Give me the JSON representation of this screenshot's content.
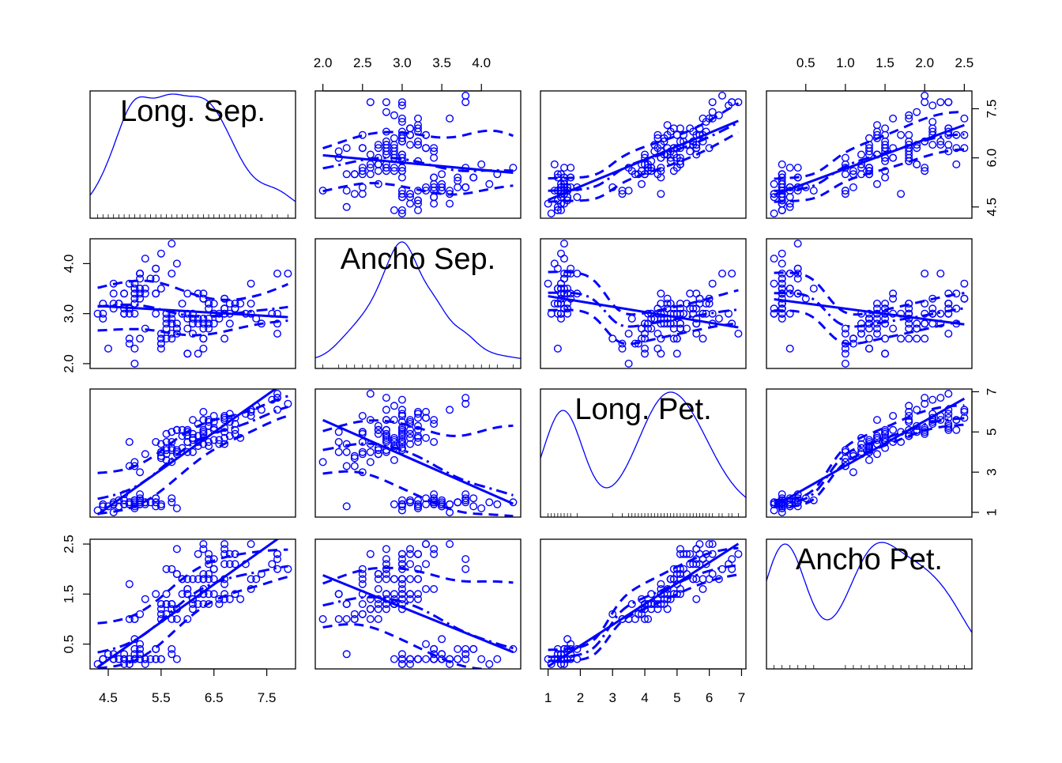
{
  "chart_data": {
    "type": "scatter",
    "subtype": "scatterplot-matrix",
    "variables": [
      "Long. Sep.",
      "Ancho Sep.",
      "Long. Pet.",
      "Ancho Pet."
    ],
    "ranges": {
      "Long. Sep.": [
        4.3,
        7.9
      ],
      "Ancho Sep.": [
        2.0,
        4.4
      ],
      "Long. Pet.": [
        1.0,
        6.9
      ],
      "Ancho Pet.": [
        0.1,
        2.5
      ]
    },
    "ticks": {
      "Long. Sep.": [
        "4.5",
        "5.5",
        "6.5",
        "7.5"
      ],
      "Ancho Sep.": [
        "2.0",
        "2.5",
        "3.0",
        "3.5",
        "4.0"
      ],
      "Long. Pet.": [
        "1",
        "2",
        "3",
        "4",
        "5",
        "6",
        "7"
      ],
      "Ancho Pet.": [
        "0.5",
        "1.0",
        "1.5",
        "2.0",
        "2.5"
      ]
    },
    "right_ticks": {
      "Long. Sep.": [
        "4.5",
        "6.0",
        "7.5"
      ],
      "Long. Pet.": [
        "1",
        "3",
        "5",
        "7"
      ]
    },
    "left_ticks": {
      "Ancho Sep.": [
        "2.0",
        "3.0",
        "4.0"
      ],
      "Ancho Pet.": [
        "0.5",
        "1.5",
        "2.5"
      ]
    },
    "points": {
      "Long. Sep.": [
        5.1,
        4.9,
        4.7,
        4.6,
        5.0,
        5.4,
        4.6,
        5.0,
        4.4,
        4.9,
        5.4,
        4.8,
        4.8,
        4.3,
        5.8,
        5.7,
        5.4,
        5.1,
        5.7,
        5.1,
        5.4,
        5.1,
        4.6,
        5.1,
        4.8,
        5.0,
        5.0,
        5.2,
        5.2,
        4.7,
        4.8,
        5.4,
        5.2,
        5.5,
        4.9,
        5.0,
        5.5,
        4.9,
        4.4,
        5.1,
        5.0,
        4.5,
        4.4,
        5.0,
        5.1,
        4.8,
        5.1,
        4.6,
        5.3,
        5.0,
        7.0,
        6.4,
        6.9,
        5.5,
        6.5,
        5.7,
        6.3,
        4.9,
        6.6,
        5.2,
        5.0,
        5.9,
        6.0,
        6.1,
        5.6,
        6.7,
        5.6,
        5.8,
        6.2,
        5.6,
        5.9,
        6.1,
        6.3,
        6.1,
        6.4,
        6.6,
        6.8,
        6.7,
        6.0,
        5.7,
        5.5,
        5.5,
        5.8,
        6.0,
        5.4,
        6.0,
        6.7,
        6.3,
        5.6,
        5.5,
        5.5,
        6.1,
        5.8,
        5.0,
        5.6,
        5.7,
        5.7,
        6.2,
        5.1,
        5.7,
        6.3,
        5.8,
        7.1,
        6.3,
        6.5,
        7.6,
        4.9,
        7.3,
        6.7,
        7.2,
        6.5,
        6.4,
        6.8,
        5.7,
        5.8,
        6.4,
        6.5,
        7.7,
        7.7,
        6.0,
        6.9,
        5.6,
        7.7,
        6.3,
        6.7,
        7.2,
        6.2,
        6.1,
        6.4,
        7.2,
        7.4,
        7.9,
        6.4,
        6.3,
        6.1,
        7.7,
        6.3,
        6.4,
        6.0,
        6.9,
        6.7,
        6.9,
        5.8,
        6.8,
        6.7,
        6.7,
        6.3,
        6.5,
        6.2,
        5.9
      ],
      "Ancho Sep.": [
        3.5,
        3.0,
        3.2,
        3.1,
        3.6,
        3.9,
        3.4,
        3.4,
        2.9,
        3.1,
        3.7,
        3.4,
        3.0,
        3.0,
        4.0,
        4.4,
        3.9,
        3.5,
        3.8,
        3.8,
        3.4,
        3.7,
        3.6,
        3.3,
        3.4,
        3.0,
        3.4,
        3.5,
        3.4,
        3.2,
        3.1,
        3.4,
        4.1,
        4.2,
        3.1,
        3.2,
        3.5,
        3.6,
        3.0,
        3.4,
        3.5,
        2.3,
        3.2,
        3.5,
        3.8,
        3.0,
        3.8,
        3.2,
        3.7,
        3.3,
        3.2,
        3.2,
        3.1,
        2.3,
        2.8,
        2.8,
        3.3,
        2.4,
        2.9,
        2.7,
        2.0,
        3.0,
        2.2,
        2.9,
        2.9,
        3.1,
        3.0,
        2.7,
        2.2,
        2.5,
        3.2,
        2.8,
        2.5,
        2.8,
        2.9,
        3.0,
        2.8,
        3.0,
        2.9,
        2.6,
        2.4,
        2.4,
        2.7,
        2.7,
        3.0,
        3.4,
        3.1,
        2.3,
        3.0,
        2.5,
        2.6,
        3.0,
        2.6,
        2.3,
        2.7,
        3.0,
        2.9,
        2.9,
        2.5,
        2.8,
        3.3,
        2.7,
        3.0,
        2.9,
        3.0,
        3.0,
        2.5,
        2.9,
        2.5,
        3.6,
        3.2,
        2.7,
        3.0,
        2.5,
        2.8,
        3.2,
        3.0,
        3.8,
        2.6,
        2.2,
        3.2,
        2.8,
        2.8,
        2.7,
        3.3,
        3.2,
        2.8,
        3.0,
        2.8,
        3.0,
        2.8,
        3.8,
        2.8,
        2.8,
        2.6,
        3.0,
        3.4,
        3.1,
        3.0,
        3.1,
        3.1,
        3.1,
        2.7,
        3.2,
        3.3,
        3.0,
        2.5,
        3.0,
        3.4,
        3.0
      ],
      "Long. Pet.": [
        1.4,
        1.4,
        1.3,
        1.5,
        1.4,
        1.7,
        1.4,
        1.5,
        1.4,
        1.5,
        1.5,
        1.6,
        1.4,
        1.1,
        1.2,
        1.5,
        1.3,
        1.4,
        1.7,
        1.5,
        1.7,
        1.5,
        1.0,
        1.7,
        1.9,
        1.6,
        1.6,
        1.5,
        1.4,
        1.6,
        1.6,
        1.5,
        1.5,
        1.4,
        1.5,
        1.2,
        1.3,
        1.4,
        1.3,
        1.5,
        1.3,
        1.3,
        1.3,
        1.6,
        1.9,
        1.4,
        1.6,
        1.4,
        1.5,
        1.4,
        4.7,
        4.5,
        4.9,
        4.0,
        4.6,
        4.5,
        4.7,
        3.3,
        4.6,
        3.9,
        3.5,
        4.2,
        4.0,
        4.7,
        3.6,
        4.4,
        4.5,
        4.1,
        4.5,
        3.9,
        4.8,
        4.0,
        4.9,
        4.7,
        4.3,
        4.4,
        4.8,
        5.0,
        4.5,
        3.5,
        3.8,
        3.7,
        3.9,
        5.1,
        4.5,
        4.5,
        4.7,
        4.4,
        4.1,
        4.0,
        4.4,
        4.6,
        4.0,
        3.3,
        4.2,
        4.2,
        4.2,
        4.3,
        3.0,
        4.1,
        6.0,
        5.1,
        5.9,
        5.6,
        5.8,
        6.6,
        4.5,
        6.3,
        5.8,
        6.1,
        5.1,
        5.3,
        5.5,
        5.0,
        5.1,
        5.3,
        5.5,
        6.7,
        6.9,
        5.0,
        5.7,
        4.9,
        6.7,
        4.9,
        5.7,
        6.0,
        4.8,
        4.9,
        5.6,
        5.8,
        6.1,
        6.4,
        5.6,
        5.1,
        5.6,
        6.1,
        5.6,
        5.5,
        4.8,
        5.4,
        5.6,
        5.1,
        5.1,
        5.9,
        5.7,
        5.2,
        5.0,
        5.2,
        5.4,
        5.1
      ],
      "Ancho Pet.": [
        0.2,
        0.2,
        0.2,
        0.2,
        0.2,
        0.4,
        0.3,
        0.2,
        0.2,
        0.1,
        0.2,
        0.2,
        0.1,
        0.1,
        0.2,
        0.4,
        0.4,
        0.3,
        0.3,
        0.3,
        0.2,
        0.4,
        0.2,
        0.5,
        0.2,
        0.2,
        0.4,
        0.2,
        0.2,
        0.2,
        0.2,
        0.4,
        0.1,
        0.2,
        0.2,
        0.2,
        0.2,
        0.1,
        0.2,
        0.2,
        0.3,
        0.3,
        0.2,
        0.6,
        0.4,
        0.3,
        0.2,
        0.2,
        0.2,
        0.2,
        1.4,
        1.5,
        1.5,
        1.3,
        1.5,
        1.3,
        1.6,
        1.0,
        1.3,
        1.4,
        1.0,
        1.5,
        1.0,
        1.4,
        1.3,
        1.4,
        1.5,
        1.0,
        1.5,
        1.1,
        1.8,
        1.3,
        1.5,
        1.2,
        1.3,
        1.4,
        1.4,
        1.7,
        1.5,
        1.0,
        1.1,
        1.0,
        1.2,
        1.6,
        1.5,
        1.6,
        1.5,
        1.3,
        1.3,
        1.3,
        1.2,
        1.4,
        1.2,
        1.0,
        1.3,
        1.2,
        1.3,
        1.3,
        1.1,
        1.3,
        2.5,
        1.9,
        2.1,
        1.8,
        2.2,
        2.1,
        1.7,
        1.8,
        1.8,
        2.5,
        2.0,
        1.9,
        2.1,
        2.0,
        2.4,
        2.3,
        1.8,
        2.2,
        2.3,
        1.5,
        2.3,
        2.0,
        2.0,
        1.8,
        2.1,
        1.8,
        1.8,
        1.8,
        2.1,
        1.6,
        1.9,
        2.0,
        2.2,
        1.5,
        1.4,
        2.3,
        2.4,
        1.8,
        1.8,
        2.1,
        2.4,
        2.3,
        1.9,
        2.3,
        2.5,
        2.3,
        1.9,
        2.0,
        2.3,
        1.8
      ]
    },
    "series_styles": [
      "points",
      "regression-line",
      "loess-smooth",
      "conditional-spread"
    ],
    "grid": false,
    "legend": "none"
  },
  "colors": {
    "points": "#0000ff",
    "lines": "#0000ff",
    "frame": "#000000",
    "background": "#ffffff"
  }
}
